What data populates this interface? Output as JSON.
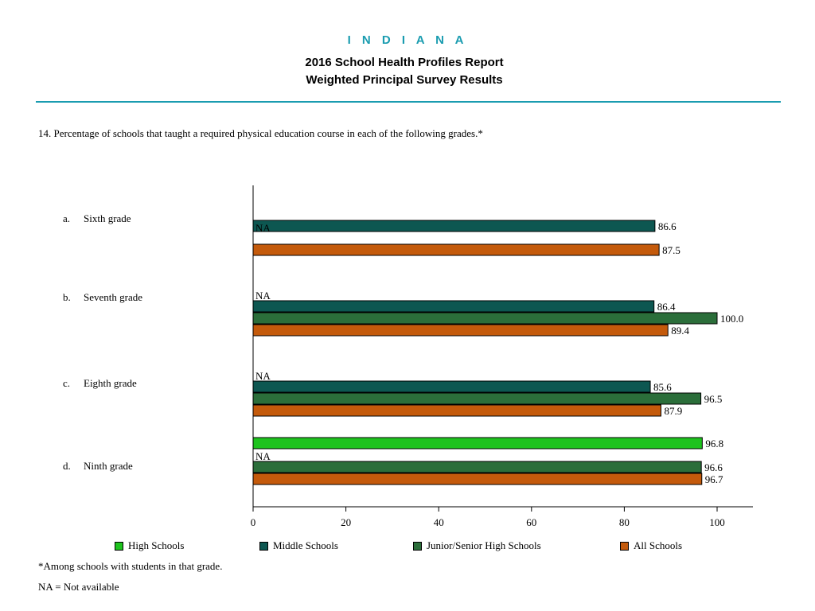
{
  "header": {
    "state": "I N D I A N A",
    "title_line1": "2016 School Health Profiles Report",
    "title_line2": "Weighted Principal Survey Results"
  },
  "question": "14.   Percentage of schools that taught a required physical education course in each of the following grades.*",
  "footnotes": {
    "among": "*Among schools with students in that grade.",
    "na": "NA = Not available"
  },
  "colors": {
    "high_schools": "#1ec31e",
    "middle_schools": "#0d5751",
    "junior_senior": "#2b6e3a",
    "all_schools": "#c45a0b",
    "axis": "#000000"
  },
  "chart_data": {
    "type": "bar",
    "orientation": "horizontal",
    "title": "",
    "xlabel": "",
    "ylabel": "",
    "xlim": [
      0,
      100
    ],
    "x_ticks": [
      "0",
      "20",
      "40",
      "60",
      "80",
      "100"
    ],
    "grid": false,
    "legend_position": "bottom",
    "na_label": "NA",
    "categories": [
      "a.   Sixth grade",
      "b.   Seventh grade",
      "c.   Eighth grade",
      "d.   Ninth grade"
    ],
    "series": [
      {
        "name": "High Schools",
        "color": "#1ec31e",
        "values": [
          null,
          null,
          null,
          96.8
        ],
        "labels": [
          "NA",
          "NA",
          "NA",
          "96.8"
        ]
      },
      {
        "name": "Middle Schools",
        "color": "#0d5751",
        "values": [
          86.6,
          86.4,
          85.6,
          null
        ],
        "labels": [
          "86.6",
          "86.4",
          "85.6",
          "NA"
        ]
      },
      {
        "name": "Junior/Senior High Schools",
        "color": "#2b6e3a",
        "values": [
          null,
          100.0,
          96.5,
          96.6
        ],
        "labels": [
          "NA",
          "100.0",
          "96.5",
          "96.6"
        ]
      },
      {
        "name": "All Schools",
        "color": "#c45a0b",
        "values": [
          87.5,
          89.4,
          87.9,
          96.7
        ],
        "labels": [
          "87.5",
          "89.4",
          "87.9",
          "96.7"
        ]
      }
    ]
  }
}
